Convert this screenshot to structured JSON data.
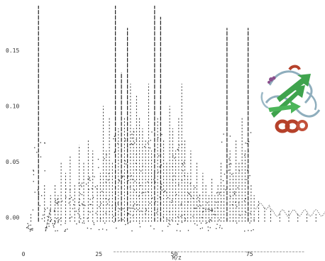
{
  "chart_data": {
    "type": "line",
    "title": "",
    "xlabel": "M/Z",
    "ylabel": "",
    "xlim": [
      0,
      100
    ],
    "ylim": [
      -0.02,
      0.19
    ],
    "grid": false,
    "legend": "none",
    "x_ticks": [
      {
        "value": 0,
        "label": "0"
      },
      {
        "value": 25,
        "label": "25"
      },
      {
        "value": 50,
        "label": "50"
      },
      {
        "value": 75,
        "label": "75"
      }
    ],
    "y_ticks": [
      {
        "value": 0.0,
        "label": "0.00"
      },
      {
        "value": 0.05,
        "label": "0.05"
      },
      {
        "value": 0.1,
        "label": "0.10"
      },
      {
        "value": 0.15,
        "label": "0.15"
      }
    ],
    "series": [
      {
        "color": "#222222",
        "peaks": [
          {
            "x": 2.5,
            "y": 0.003
          },
          {
            "x": 5.0,
            "y": 0.19
          },
          {
            "x": 7.0,
            "y": 0.03
          },
          {
            "x": 9.0,
            "y": 0.02
          },
          {
            "x": 10.5,
            "y": 0.03
          },
          {
            "x": 11.5,
            "y": 0.02
          },
          {
            "x": 12.5,
            "y": 0.05
          },
          {
            "x": 14.0,
            "y": 0.04
          },
          {
            "x": 15.5,
            "y": 0.055
          },
          {
            "x": 17.0,
            "y": 0.03
          },
          {
            "x": 18.5,
            "y": 0.065
          },
          {
            "x": 20.0,
            "y": 0.05
          },
          {
            "x": 21.5,
            "y": 0.07
          },
          {
            "x": 23.0,
            "y": 0.06
          },
          {
            "x": 24.5,
            "y": 0.03
          },
          {
            "x": 25.5,
            "y": 0.04
          },
          {
            "x": 26.5,
            "y": 0.1
          },
          {
            "x": 27.5,
            "y": 0.06
          },
          {
            "x": 28.5,
            "y": 0.09
          },
          {
            "x": 29.5,
            "y": 0.05
          },
          {
            "x": 30.5,
            "y": 0.19
          },
          {
            "x": 31.5,
            "y": 0.08
          },
          {
            "x": 32.5,
            "y": 0.13
          },
          {
            "x": 33.5,
            "y": 0.09
          },
          {
            "x": 34.5,
            "y": 0.17
          },
          {
            "x": 35.5,
            "y": 0.12
          },
          {
            "x": 36.5,
            "y": 0.08
          },
          {
            "x": 37.5,
            "y": 0.11
          },
          {
            "x": 38.5,
            "y": 0.09
          },
          {
            "x": 39.5,
            "y": 0.08
          },
          {
            "x": 40.5,
            "y": 0.07
          },
          {
            "x": 41.5,
            "y": 0.12
          },
          {
            "x": 42.5,
            "y": 0.06
          },
          {
            "x": 43.5,
            "y": 0.19
          },
          {
            "x": 44.5,
            "y": 0.09
          },
          {
            "x": 45.5,
            "y": 0.18
          },
          {
            "x": 46.5,
            "y": 0.07
          },
          {
            "x": 47.5,
            "y": 0.05
          },
          {
            "x": 48.5,
            "y": 0.1
          },
          {
            "x": 49.5,
            "y": 0.08
          },
          {
            "x": 50.5,
            "y": 0.06
          },
          {
            "x": 51.5,
            "y": 0.09
          },
          {
            "x": 52.5,
            "y": 0.12
          },
          {
            "x": 53.5,
            "y": 0.07
          },
          {
            "x": 54.5,
            "y": 0.04
          },
          {
            "x": 55.5,
            "y": 0.06
          },
          {
            "x": 56.5,
            "y": 0.03
          },
          {
            "x": 57.5,
            "y": 0.05
          },
          {
            "x": 58.5,
            "y": 0.02
          },
          {
            "x": 59.5,
            "y": 0.04
          },
          {
            "x": 60.5,
            "y": 0.03
          },
          {
            "x": 61.5,
            "y": 0.02
          },
          {
            "x": 62.5,
            "y": 0.035
          },
          {
            "x": 63.5,
            "y": 0.02
          },
          {
            "x": 64.5,
            "y": 0.03
          },
          {
            "x": 65.5,
            "y": 0.05
          },
          {
            "x": 66.5,
            "y": 0.03
          },
          {
            "x": 67.5,
            "y": 0.17
          },
          {
            "x": 68.5,
            "y": 0.06
          },
          {
            "x": 69.5,
            "y": 0.04
          },
          {
            "x": 70.5,
            "y": 0.07
          },
          {
            "x": 71.5,
            "y": 0.05
          },
          {
            "x": 72.5,
            "y": 0.09
          },
          {
            "x": 73.5,
            "y": 0.06
          },
          {
            "x": 74.5,
            "y": 0.17
          },
          {
            "x": 75.5,
            "y": 0.03
          },
          {
            "x": 76.5,
            "y": 0.02
          },
          {
            "x": 78.0,
            "y": 0.015
          },
          {
            "x": 80.0,
            "y": 0.01
          },
          {
            "x": 82.0,
            "y": 0.008
          },
          {
            "x": 85.0,
            "y": 0.005
          },
          {
            "x": 88.0,
            "y": 0.006
          },
          {
            "x": 91.0,
            "y": 0.004
          },
          {
            "x": 94.0,
            "y": 0.005
          },
          {
            "x": 97.0,
            "y": 0.003
          }
        ]
      }
    ]
  },
  "inset": {
    "icon": "protein-ribbon-structure-icon",
    "colors": {
      "helix": "#b5412a",
      "sheet": "#3fa34d",
      "coil": "#8faebd",
      "ligand": "#8a4f8c"
    }
  }
}
